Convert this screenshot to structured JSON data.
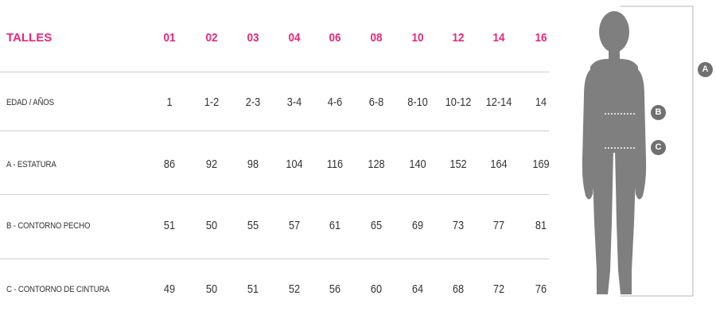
{
  "table": {
    "header": {
      "label": "TALLES",
      "values": [
        "01",
        "02",
        "03",
        "04",
        "06",
        "08",
        "10",
        "12",
        "14",
        "16"
      ]
    },
    "rows": [
      {
        "label": "EDAD / AÑOS",
        "values": [
          "1",
          "1-2",
          "2-3",
          "3-4",
          "4-6",
          "6-8",
          "8-10",
          "10-12",
          "12-14",
          "14"
        ]
      },
      {
        "label": "A - ESTATURA",
        "values": [
          "86",
          "92",
          "98",
          "104",
          "116",
          "128",
          "140",
          "152",
          "164",
          "169"
        ]
      },
      {
        "label": "B - CONTORNO PECHO",
        "values": [
          "51",
          "50",
          "55",
          "57",
          "61",
          "65",
          "69",
          "73",
          "77",
          "81"
        ]
      },
      {
        "label": "C - CONTORNO DE CINTURA",
        "values": [
          "49",
          "50",
          "51",
          "52",
          "56",
          "60",
          "64",
          "68",
          "72",
          "76"
        ]
      }
    ]
  },
  "figure": {
    "markers": {
      "a": "A",
      "b": "B",
      "c": "C"
    }
  },
  "colors": {
    "accent": "#e8277a",
    "silhouette": "#7f7f7f",
    "badge": "#707070"
  }
}
